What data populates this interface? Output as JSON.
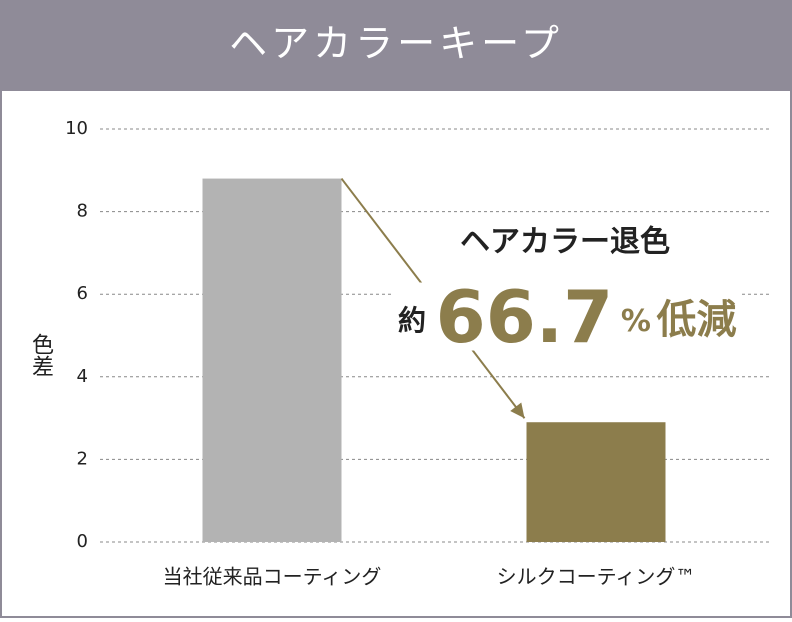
{
  "chart_data": {
    "type": "bar",
    "title": "ヘアカラーキープ",
    "y_label": "色差",
    "categories": [
      "当社従来品コーティング",
      "シルクコーティング™"
    ],
    "values": [
      8.8,
      2.9
    ],
    "colors": [
      "#b3b3b3",
      "#8c7d4c"
    ],
    "ylim": [
      0,
      10
    ],
    "yticks": [
      0,
      2,
      4,
      6,
      8,
      10
    ],
    "grid": true,
    "annotation": {
      "heading": "ヘアカラー退色",
      "prefix": "約",
      "value": 66.7,
      "unit": "%",
      "suffix": "低減",
      "color": "#8c7d4c"
    }
  }
}
